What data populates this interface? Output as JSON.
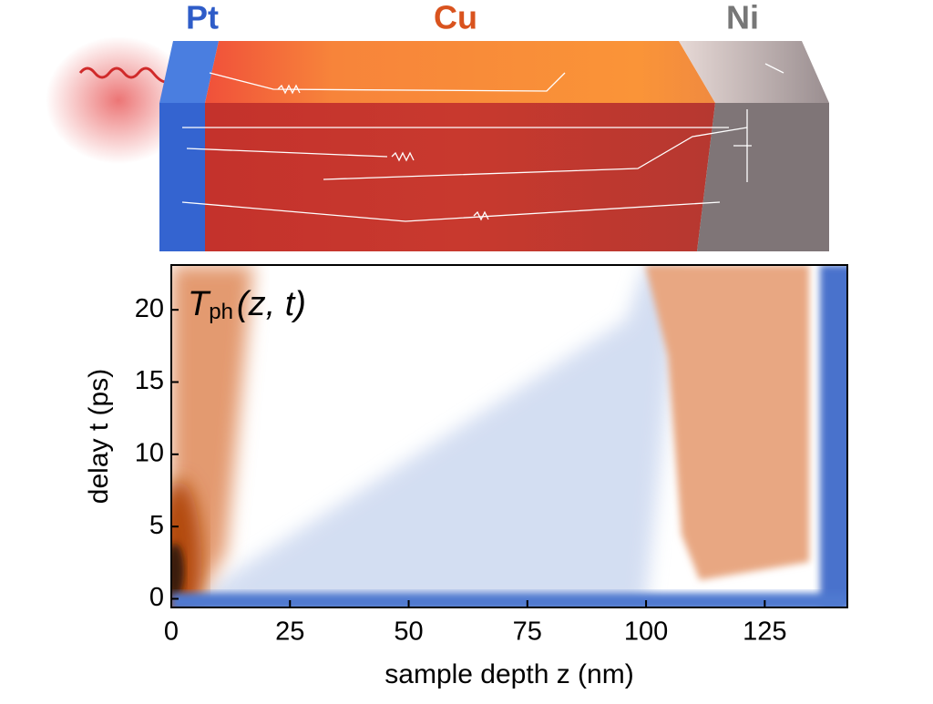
{
  "chart_data": {
    "type": "heatmap",
    "layers": [
      "Pt",
      "Cu",
      "Ni"
    ],
    "title": {
      "symbol": "T",
      "subscript": "ph",
      "arguments": "(z, t)"
    },
    "x_label": "sample depth z (nm)",
    "y_label": "delay t (ps)",
    "xlim": [
      0,
      142.4
    ],
    "xticks": [
      0,
      25,
      50,
      75,
      100,
      125
    ],
    "ylim": [
      -0.6,
      23.1
    ],
    "yticks": [
      0,
      5,
      10,
      15,
      20
    ]
  }
}
